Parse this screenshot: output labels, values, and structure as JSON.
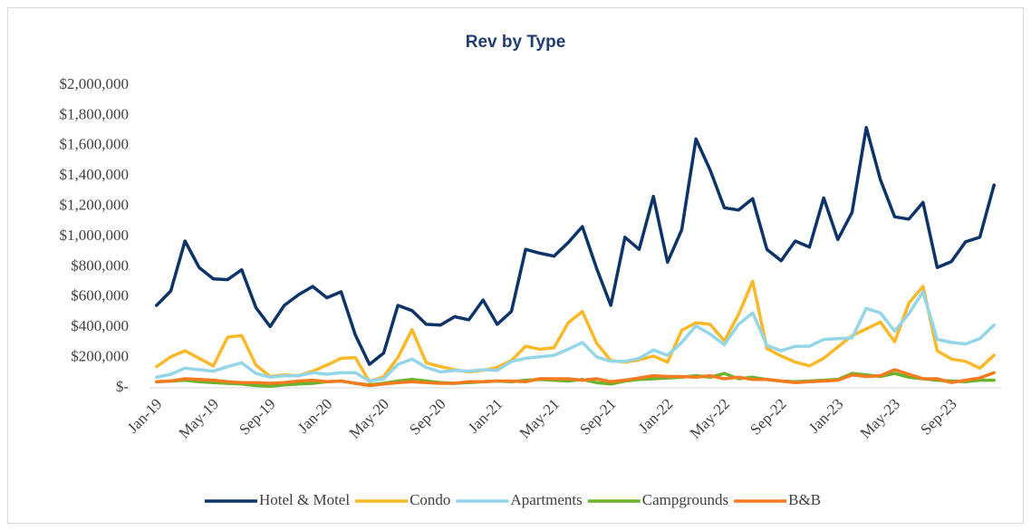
{
  "chart_data": {
    "type": "line",
    "title": "Rev by Type",
    "categories": [
      "Jan-19",
      null,
      null,
      null,
      "May-19",
      null,
      null,
      null,
      "Sep-19",
      null,
      null,
      null,
      "Jan-20",
      null,
      null,
      null,
      "May-20",
      null,
      null,
      null,
      "Sep-20",
      null,
      null,
      null,
      "Jan-21",
      null,
      null,
      null,
      "May-21",
      null,
      null,
      null,
      "Sep-21",
      null,
      null,
      null,
      "Jan-22",
      null,
      null,
      null,
      "May-22",
      null,
      null,
      null,
      "Sep-22",
      null,
      null,
      null,
      "Jan-23",
      null,
      null,
      null,
      "May-23",
      null,
      null,
      null,
      "Sep-23",
      null,
      null,
      null
    ],
    "series": [
      {
        "name": "Hotel & Motel",
        "color": "#0c3468",
        "values": [
          545000,
          640000,
          970000,
          795000,
          720000,
          715000,
          780000,
          530000,
          405000,
          545000,
          615000,
          670000,
          595000,
          635000,
          350000,
          155000,
          230000,
          545000,
          510000,
          420000,
          415000,
          470000,
          450000,
          580000,
          420000,
          505000,
          915000,
          890000,
          870000,
          960000,
          1065000,
          790000,
          545000,
          995000,
          915000,
          1265000,
          830000,
          1045000,
          1645000,
          1440000,
          1190000,
          1175000,
          1250000,
          915000,
          840000,
          970000,
          930000,
          1255000,
          980000,
          1160000,
          1720000,
          1375000,
          1130000,
          1115000,
          1225000,
          795000,
          835000,
          965000,
          995000,
          1340000
        ]
      },
      {
        "name": "Condo",
        "color": "#fbb829",
        "values": [
          140000,
          205000,
          245000,
          195000,
          145000,
          335000,
          345000,
          150000,
          75000,
          85000,
          80000,
          110000,
          150000,
          195000,
          200000,
          40000,
          75000,
          200000,
          385000,
          165000,
          140000,
          120000,
          105000,
          115000,
          135000,
          180000,
          275000,
          255000,
          265000,
          430000,
          505000,
          295000,
          180000,
          170000,
          185000,
          210000,
          170000,
          380000,
          430000,
          420000,
          310000,
          485000,
          705000,
          260000,
          210000,
          170000,
          145000,
          195000,
          270000,
          345000,
          390000,
          435000,
          305000,
          560000,
          670000,
          245000,
          190000,
          175000,
          130000,
          215000
        ]
      },
      {
        "name": "Apartments",
        "color": "#94d6e8",
        "values": [
          70000,
          90000,
          130000,
          120000,
          110000,
          140000,
          165000,
          95000,
          70000,
          80000,
          80000,
          100000,
          90000,
          100000,
          100000,
          45000,
          60000,
          155000,
          190000,
          135000,
          105000,
          115000,
          110000,
          120000,
          115000,
          175000,
          195000,
          205000,
          215000,
          255000,
          300000,
          205000,
          175000,
          175000,
          195000,
          250000,
          215000,
          300000,
          410000,
          355000,
          285000,
          420000,
          495000,
          280000,
          245000,
          275000,
          275000,
          320000,
          325000,
          330000,
          525000,
          495000,
          375000,
          490000,
          635000,
          320000,
          300000,
          290000,
          325000,
          415000
        ]
      },
      {
        "name": "Campgrounds",
        "color": "#6ab42d",
        "values": [
          40000,
          45000,
          50000,
          40000,
          35000,
          30000,
          25000,
          15000,
          10000,
          20000,
          25000,
          30000,
          40000,
          45000,
          30000,
          20000,
          30000,
          45000,
          55000,
          45000,
          35000,
          30000,
          35000,
          40000,
          45000,
          40000,
          50000,
          55000,
          50000,
          45000,
          55000,
          35000,
          25000,
          45000,
          55000,
          60000,
          65000,
          70000,
          80000,
          70000,
          95000,
          60000,
          70000,
          55000,
          45000,
          40000,
          45000,
          50000,
          55000,
          95000,
          85000,
          75000,
          95000,
          70000,
          60000,
          50000,
          45000,
          40000,
          50000,
          50000
        ]
      },
      {
        "name": "B&B",
        "color": "#f47b20",
        "values": [
          40000,
          45000,
          60000,
          55000,
          50000,
          40000,
          35000,
          35000,
          30000,
          35000,
          45000,
          50000,
          40000,
          45000,
          30000,
          15000,
          25000,
          35000,
          40000,
          35000,
          30000,
          30000,
          40000,
          40000,
          45000,
          45000,
          40000,
          60000,
          60000,
          60000,
          50000,
          60000,
          40000,
          50000,
          65000,
          80000,
          75000,
          75000,
          70000,
          80000,
          60000,
          70000,
          55000,
          55000,
          45000,
          35000,
          40000,
          45000,
          50000,
          85000,
          75000,
          80000,
          120000,
          90000,
          60000,
          60000,
          35000,
          50000,
          65000,
          100000
        ]
      }
    ],
    "ylim": [
      0,
      2000000
    ],
    "yticks": [
      {
        "value": 0,
        "label": "$-"
      },
      {
        "value": 200000,
        "label": "$200,000"
      },
      {
        "value": 400000,
        "label": "$400,000"
      },
      {
        "value": 600000,
        "label": "$600,000"
      },
      {
        "value": 800000,
        "label": "$800,000"
      },
      {
        "value": 1000000,
        "label": "$1,000,000"
      },
      {
        "value": 1200000,
        "label": "$1,200,000"
      },
      {
        "value": 1400000,
        "label": "$1,400,000"
      },
      {
        "value": 1600000,
        "label": "$1,600,000"
      },
      {
        "value": 1800000,
        "label": "$1,800,000"
      },
      {
        "value": 2000000,
        "label": "$2,000,000"
      }
    ],
    "grid": false,
    "legend": "bottom"
  }
}
